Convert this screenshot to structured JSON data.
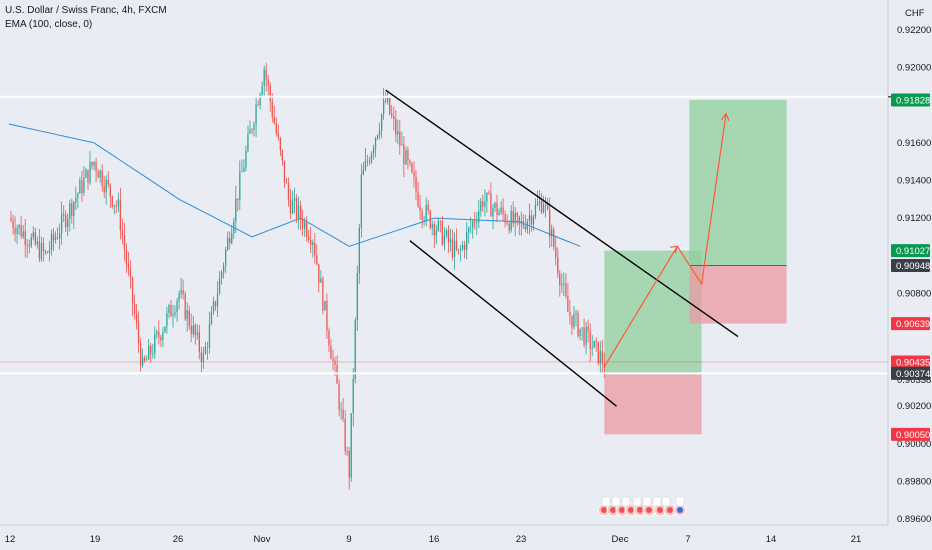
{
  "chart_header": {
    "symbol_line": "U.S. Dollar / Swiss Franc, 4h, FXCM",
    "indicator_line": "EMA (100, close, 0)",
    "currency": "CHF"
  },
  "colors": {
    "background": "#e9ecf2",
    "candle_up": "#26a69a",
    "candle_down": "#ef5350",
    "ema": "#2f8cde",
    "horizontal_line": "#ffffff",
    "channel_line": "#000000",
    "arrow": "#ff5a3c",
    "profit_zone": "#8fcf9c",
    "loss_zone": "#eb9aa2",
    "label_green": "#089950",
    "label_red": "#f23645",
    "label_dark": "#3c3f48"
  },
  "chart_data": {
    "type": "candlestick",
    "instrument": "USD/CHF",
    "timeframe": "4h",
    "x_tick_labels": [
      "12",
      "19",
      "26",
      "Nov",
      "9",
      "16",
      "23",
      "Dec",
      "7",
      "14",
      "21"
    ],
    "y_tick_labels": [
      "0.92200",
      "0.92000",
      "0.91600",
      "0.91400",
      "0.91200",
      "0.90800",
      "0.90338",
      "0.90200",
      "0.90000",
      "0.89800",
      "0.89600"
    ],
    "ylim": [
      0.896,
      0.9225
    ],
    "price_path_key_points": [
      {
        "date": "Oct 12",
        "price": 0.912
      },
      {
        "date": "Oct 15",
        "price": 0.91
      },
      {
        "date": "Oct 19",
        "price": 0.915
      },
      {
        "date": "Oct 21",
        "price": 0.9125
      },
      {
        "date": "Oct 23",
        "price": 0.904
      },
      {
        "date": "Oct 26",
        "price": 0.908
      },
      {
        "date": "Oct 28",
        "price": 0.9045
      },
      {
        "date": "Nov 1",
        "price": 0.917
      },
      {
        "date": "Nov 2",
        "price": 0.92
      },
      {
        "date": "Nov 4",
        "price": 0.913
      },
      {
        "date": "Nov 6",
        "price": 0.911
      },
      {
        "date": "Nov 8",
        "price": 0.903
      },
      {
        "date": "Nov 9",
        "price": 0.8985
      },
      {
        "date": "Nov 10",
        "price": 0.914
      },
      {
        "date": "Nov 12",
        "price": 0.9182
      },
      {
        "date": "Nov 15",
        "price": 0.9125
      },
      {
        "date": "Nov 18",
        "price": 0.91
      },
      {
        "date": "Nov 20",
        "price": 0.913
      },
      {
        "date": "Nov 23",
        "price": 0.9115
      },
      {
        "date": "Nov 25",
        "price": 0.913
      },
      {
        "date": "Nov 27",
        "price": 0.907
      },
      {
        "date": "Nov 30",
        "price": 0.9043
      }
    ],
    "ema_key_points": [
      {
        "date": "Oct 12",
        "price": 0.917
      },
      {
        "date": "Oct 19",
        "price": 0.916
      },
      {
        "date": "Oct 26",
        "price": 0.913
      },
      {
        "date": "Nov 1",
        "price": 0.911
      },
      {
        "date": "Nov 5",
        "price": 0.912
      },
      {
        "date": "Nov 9",
        "price": 0.9105
      },
      {
        "date": "Nov 16",
        "price": 0.912
      },
      {
        "date": "Nov 23",
        "price": 0.9118
      },
      {
        "date": "Nov 28",
        "price": 0.9105
      }
    ],
    "horizontal_levels": [
      0.91845,
      0.90374
    ],
    "price_labels": [
      {
        "text": "0.91845",
        "price": 0.91845,
        "style": "plain"
      },
      {
        "text": "0.91828",
        "price": 0.91828,
        "style": "green"
      },
      {
        "text": "0.91027",
        "price": 0.91027,
        "style": "green"
      },
      {
        "text": "0.90948",
        "price": 0.90948,
        "style": "dark"
      },
      {
        "text": "0.90639",
        "price": 0.90639,
        "style": "red"
      },
      {
        "text": "0.90435",
        "price": 0.90435,
        "style": "red"
      },
      {
        "text": "0.90374",
        "price": 0.90374,
        "style": "dark"
      },
      {
        "text": "0.90050",
        "price": 0.9005,
        "style": "red"
      }
    ],
    "channel_lines": [
      {
        "from": {
          "date": "Nov 12",
          "price": 0.9188
        },
        "to": {
          "date": "Dec 11",
          "price": 0.9057
        }
      },
      {
        "from": {
          "date": "Nov 14",
          "price": 0.9108
        },
        "to": {
          "date": "Dec 1",
          "price": 0.902
        }
      }
    ],
    "positions": [
      {
        "type": "long",
        "entry": 0.90374,
        "target": 0.91027,
        "stop": 0.9005,
        "start": "Nov 30",
        "end": "Dec 8"
      },
      {
        "type": "long",
        "entry": 0.90948,
        "target": 0.91828,
        "stop": 0.90639,
        "start": "Dec 7",
        "end": "Dec 15"
      }
    ],
    "projected_path": [
      {
        "date": "Nov 30",
        "price": 0.9041
      },
      {
        "date": "Dec 6",
        "price": 0.9105
      },
      {
        "date": "Dec 8",
        "price": 0.9085
      },
      {
        "date": "Dec 10",
        "price": 0.9175
      }
    ]
  }
}
